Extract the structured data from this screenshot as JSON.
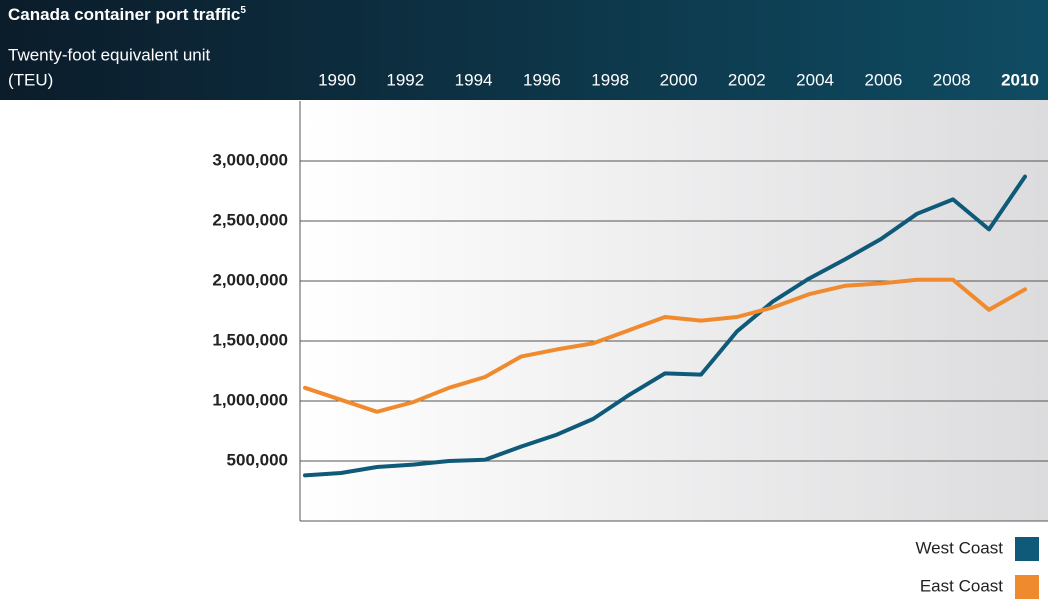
{
  "chart_data": {
    "type": "line",
    "title": "Canada container port traffic",
    "title_superscript": "5",
    "y_label": [
      "Twenty-foot equivalent unit",
      "(TEU)"
    ],
    "x": [
      1990,
      1991,
      1992,
      1993,
      1994,
      1995,
      1996,
      1997,
      1998,
      1999,
      2000,
      2001,
      2002,
      2003,
      2004,
      2005,
      2006,
      2007,
      2008,
      2009,
      2010
    ],
    "xlim": [
      1990,
      2010
    ],
    "xticks": [
      1990,
      1992,
      1994,
      1996,
      1998,
      2000,
      2002,
      2004,
      2006,
      2008,
      2010
    ],
    "ylim": [
      0,
      3500000
    ],
    "yticks": [
      {
        "value": 500000,
        "label": "500,000"
      },
      {
        "value": 1000000,
        "label": "1,000,000"
      },
      {
        "value": 1500000,
        "label": "1,500,000"
      },
      {
        "value": 2000000,
        "label": "2,000,000"
      },
      {
        "value": 2500000,
        "label": "2,500,000"
      },
      {
        "value": 3000000,
        "label": "3,000,000"
      }
    ],
    "grid": true,
    "series": [
      {
        "name": "West Coast",
        "color": "#0f5a78",
        "values": [
          380000,
          400000,
          450000,
          470000,
          500000,
          510000,
          620000,
          720000,
          850000,
          1050000,
          1230000,
          1220000,
          1580000,
          1830000,
          2020000,
          2180000,
          2350000,
          2560000,
          2680000,
          2430000,
          2870000
        ]
      },
      {
        "name": "East Coast",
        "color": "#f08a2e",
        "values": [
          1110000,
          1010000,
          910000,
          990000,
          1110000,
          1200000,
          1370000,
          1430000,
          1480000,
          1590000,
          1700000,
          1670000,
          1700000,
          1780000,
          1890000,
          1960000,
          1980000,
          2010000,
          2010000,
          1760000,
          1930000
        ]
      }
    ]
  }
}
